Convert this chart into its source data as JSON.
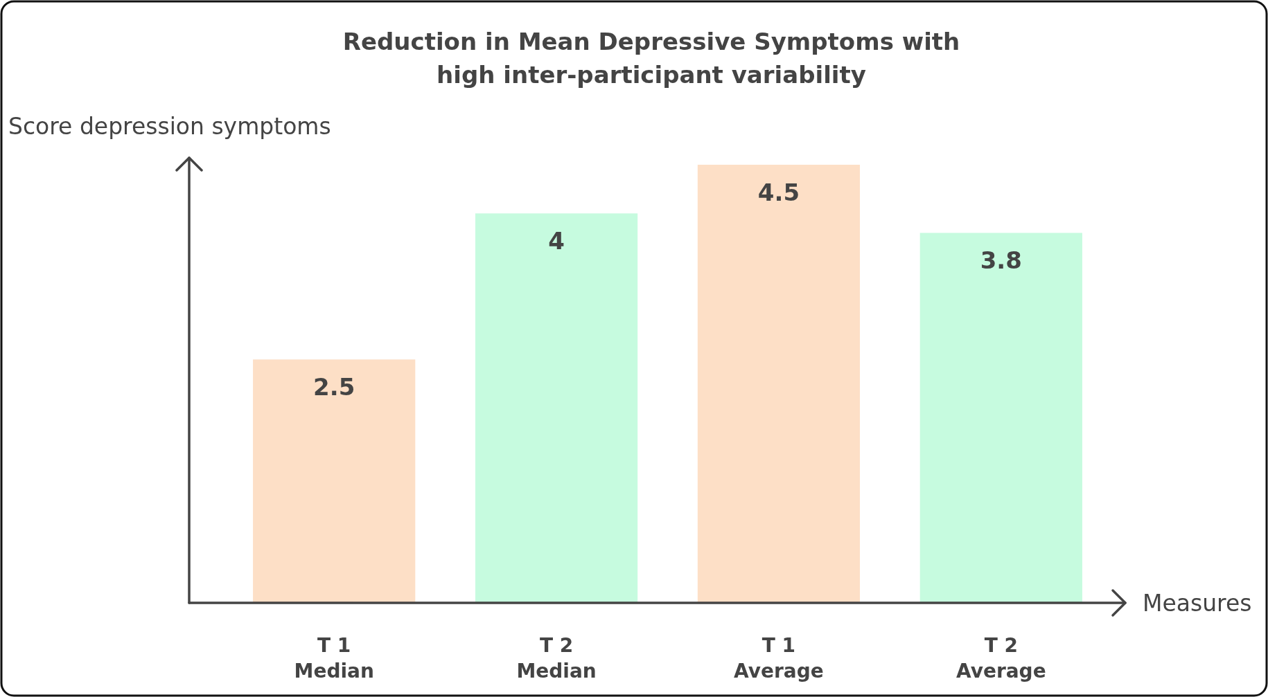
{
  "chart_data": {
    "type": "bar",
    "title": "Reduction in Mean Depressive Symptoms with\nhigh inter-participant variability",
    "xlabel": "Measures",
    "ylabel": "Score depression symptoms",
    "categories": [
      "T 1\nMedian",
      "T 2\nMedian",
      "T 1\nAverage",
      "T 2\nAverage"
    ],
    "values": [
      2.5,
      4,
      4.5,
      3.8
    ],
    "colors": [
      "#fddfc6",
      "#c6fbdf",
      "#fddfc6",
      "#c6fbdf"
    ],
    "data_labels": true,
    "tick_labels": "x"
  }
}
